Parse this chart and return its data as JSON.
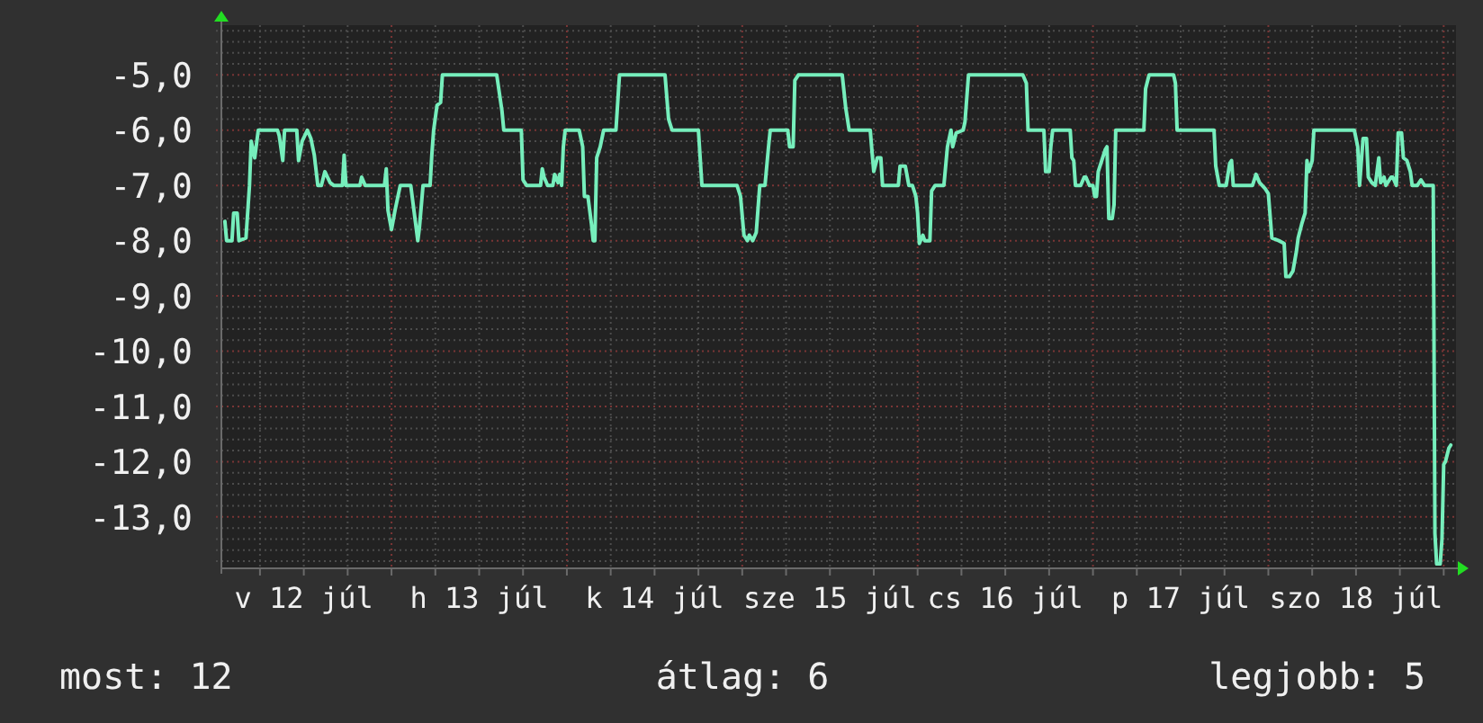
{
  "chart_data": {
    "type": "line",
    "xlim": [
      "--07-12T00:43",
      "--07-19T01:41"
    ],
    "ylim": [
      -13.93,
      -4.1
    ],
    "xticks": [
      {
        "value": "--07-12T06:00",
        "label": null
      },
      {
        "value": "--07-12T12:00",
        "label": "v 12 júl"
      },
      {
        "value": "--07-12T18:00",
        "label": null
      },
      {
        "value": "--07-13T00:00",
        "label": null
      },
      {
        "value": "--07-13T06:00",
        "label": null
      },
      {
        "value": "--07-13T12:00",
        "label": "h 13 júl"
      },
      {
        "value": "--07-13T18:00",
        "label": null
      },
      {
        "value": "--07-14T00:00",
        "label": null
      },
      {
        "value": "--07-14T06:00",
        "label": null
      },
      {
        "value": "--07-14T12:00",
        "label": "k 14 júl"
      },
      {
        "value": "--07-14T18:00",
        "label": null
      },
      {
        "value": "--07-15T00:00",
        "label": null
      },
      {
        "value": "--07-15T06:00",
        "label": null
      },
      {
        "value": "--07-15T12:00",
        "label": "sze 15 júl"
      },
      {
        "value": "--07-15T18:00",
        "label": null
      },
      {
        "value": "--07-16T00:00",
        "label": null
      },
      {
        "value": "--07-16T06:00",
        "label": null
      },
      {
        "value": "--07-16T12:00",
        "label": "cs 16 júl"
      },
      {
        "value": "--07-16T18:00",
        "label": null
      },
      {
        "value": "--07-17T00:00",
        "label": null
      },
      {
        "value": "--07-17T06:00",
        "label": null
      },
      {
        "value": "--07-17T12:00",
        "label": "p 17 júl"
      },
      {
        "value": "--07-17T18:00",
        "label": null
      },
      {
        "value": "--07-18T00:00",
        "label": null
      },
      {
        "value": "--07-18T06:00",
        "label": null
      },
      {
        "value": "--07-18T12:00",
        "label": "szo 18 júl"
      },
      {
        "value": "--07-18T18:00",
        "label": null
      },
      {
        "value": "--07-19T00:00",
        "label": null
      }
    ],
    "yticks": [
      {
        "value": -13.8,
        "label": null
      },
      {
        "value": -13.6,
        "label": null
      },
      {
        "value": -13.4,
        "label": null
      },
      {
        "value": -13.2,
        "label": null
      },
      {
        "value": -13,
        "label": "-13,0"
      },
      {
        "value": -12.8,
        "label": null
      },
      {
        "value": -12.6,
        "label": null
      },
      {
        "value": -12.4,
        "label": null
      },
      {
        "value": -12.2,
        "label": null
      },
      {
        "value": -12,
        "label": "-12,0"
      },
      {
        "value": -11.8,
        "label": null
      },
      {
        "value": -11.6,
        "label": null
      },
      {
        "value": -11.4,
        "label": null
      },
      {
        "value": -11.2,
        "label": null
      },
      {
        "value": -11,
        "label": "-11,0"
      },
      {
        "value": -10.8,
        "label": null
      },
      {
        "value": -10.6,
        "label": null
      },
      {
        "value": -10.4,
        "label": null
      },
      {
        "value": -10.2,
        "label": null
      },
      {
        "value": -10,
        "label": "-10,0"
      },
      {
        "value": -9.8,
        "label": null
      },
      {
        "value": -9.6,
        "label": null
      },
      {
        "value": -9.4,
        "label": null
      },
      {
        "value": -9.2,
        "label": null
      },
      {
        "value": -9,
        "label": "-9,0"
      },
      {
        "value": -8.8,
        "label": null
      },
      {
        "value": -8.6,
        "label": null
      },
      {
        "value": -8.4,
        "label": null
      },
      {
        "value": -8.2,
        "label": null
      },
      {
        "value": -8,
        "label": "-8,0"
      },
      {
        "value": -7.8,
        "label": null
      },
      {
        "value": -7.6,
        "label": null
      },
      {
        "value": -7.4,
        "label": null
      },
      {
        "value": -7.2,
        "label": null
      },
      {
        "value": -7,
        "label": "-7,0"
      },
      {
        "value": -6.8,
        "label": null
      },
      {
        "value": -6.6,
        "label": null
      },
      {
        "value": -6.4,
        "label": null
      },
      {
        "value": -6.2,
        "label": null
      },
      {
        "value": -6,
        "label": "-6,0"
      },
      {
        "value": -5.8,
        "label": null
      },
      {
        "value": -5.6,
        "label": null
      },
      {
        "value": -5.4,
        "label": null
      },
      {
        "value": -5.2,
        "label": null
      },
      {
        "value": -5,
        "label": "-5,0"
      },
      {
        "value": -4.8,
        "label": null
      },
      {
        "value": -4.6,
        "label": null
      },
      {
        "value": -4.4,
        "label": null
      },
      {
        "value": -4.2,
        "label": null
      }
    ],
    "grid": true,
    "x": [
      "--07-12T01:12",
      "--07-12T01:26",
      "--07-12T02:10",
      "--07-12T02:24",
      "--07-12T02:53",
      "--07-12T03:07",
      "--07-12T04:05",
      "--07-12T04:34",
      "--07-12T04:48",
      "--07-12T05:17",
      "--07-12T05:46",
      "--07-12T08:24",
      "--07-12T08:38",
      "--07-12T09:07",
      "--07-12T09:22",
      "--07-12T11:02",
      "--07-12T11:17",
      "--07-12T11:46",
      "--07-12T12:29",
      "--07-12T12:58",
      "--07-12T13:26",
      "--07-12T13:55",
      "--07-12T14:24",
      "--07-12T14:53",
      "--07-12T15:36",
      "--07-12T16:05",
      "--07-12T17:17",
      "--07-12T17:31",
      "--07-12T17:46",
      "--07-12T19:41",
      "--07-12T19:55",
      "--07-12T20:24",
      "--07-12T23:02",
      "--07-12T23:17",
      "--07-12T23:31",
      "--07-13T00:00",
      "--07-13T00:29",
      "--07-13T01:12",
      "--07-13T02:38",
      "--07-13T03:07",
      "--07-13T03:36",
      "--07-13T03:50",
      "--07-13T04:19",
      "--07-13T05:17",
      "--07-13T05:31",
      "--07-13T05:46",
      "--07-13T06:14",
      "--07-13T06:43",
      "--07-13T06:58",
      "--07-13T14:24",
      "--07-13T15:07",
      "--07-13T15:22",
      "--07-13T17:46",
      "--07-13T18:00",
      "--07-13T18:29",
      "--07-13T20:24",
      "--07-13T20:38",
      "--07-13T20:53",
      "--07-13T21:22",
      "--07-13T22:05",
      "--07-13T22:19",
      "--07-13T22:48",
      "--07-13T23:02",
      "--07-13T23:17",
      "--07-13T23:31",
      "--07-13T23:46",
      "--07-14T01:41",
      "--07-14T02:10",
      "--07-14T02:24",
      "--07-14T02:53",
      "--07-14T03:22",
      "--07-14T03:36",
      "--07-14T03:50",
      "--07-14T04:05",
      "--07-14T04:34",
      "--07-14T05:02",
      "--07-14T06:43",
      "--07-14T07:12",
      "--07-14T13:26",
      "--07-14T13:55",
      "--07-14T14:24",
      "--07-14T18:00",
      "--07-14T18:29",
      "--07-14T23:17",
      "--07-14T23:46",
      "--07-15T00:14",
      "--07-15T00:43",
      "--07-15T00:58",
      "--07-15T01:26",
      "--07-15T01:55",
      "--07-15T02:24",
      "--07-15T03:07",
      "--07-15T03:36",
      "--07-15T03:50",
      "--07-15T06:14",
      "--07-15T06:29",
      "--07-15T06:58",
      "--07-15T07:12",
      "--07-15T07:41",
      "--07-15T13:41",
      "--07-15T14:10",
      "--07-15T14:38",
      "--07-15T17:31",
      "--07-15T17:46",
      "--07-15T18:00",
      "--07-15T18:29",
      "--07-15T18:58",
      "--07-15T19:12",
      "--07-15T21:22",
      "--07-15T21:36",
      "--07-15T22:19",
      "--07-15T22:48",
      "--07-15T23:17",
      "--07-15T23:46",
      "--07-16T00:00",
      "--07-16T00:14",
      "--07-16T00:43",
      "--07-16T00:58",
      "--07-16T01:41",
      "--07-16T01:55",
      "--07-16T02:24",
      "--07-16T03:36",
      "--07-16T04:05",
      "--07-16T04:34",
      "--07-16T04:48",
      "--07-16T05:17",
      "--07-16T06:14",
      "--07-16T06:29",
      "--07-16T06:58",
      "--07-16T14:24",
      "--07-16T14:53",
      "--07-16T15:07",
      "--07-16T17:17",
      "--07-16T17:31",
      "--07-16T18:00",
      "--07-16T18:14",
      "--07-16T18:29",
      "--07-16T20:53",
      "--07-16T21:07",
      "--07-16T21:22",
      "--07-16T21:36",
      "--07-16T22:19",
      "--07-16T22:48",
      "--07-16T23:02",
      "--07-16T23:31",
      "--07-17T00:00",
      "--07-17T00:14",
      "--07-17T00:29",
      "--07-17T00:43",
      "--07-17T01:12",
      "--07-17T01:41",
      "--07-17T01:55",
      "--07-17T02:10",
      "--07-17T02:38",
      "--07-17T02:53",
      "--07-17T03:07",
      "--07-17T06:58",
      "--07-17T07:12",
      "--07-17T07:41",
      "--07-17T11:02",
      "--07-17T11:17",
      "--07-17T11:31",
      "--07-17T16:34",
      "--07-17T16:48",
      "--07-17T17:17",
      "--07-17T18:14",
      "--07-17T18:43",
      "--07-17T18:58",
      "--07-17T19:12",
      "--07-17T21:50",
      "--07-17T22:19",
      "--07-17T22:48",
      "--07-17T23:31",
      "--07-18T00:00",
      "--07-18T00:29",
      "--07-18T01:26",
      "--07-18T02:10",
      "--07-18T02:24",
      "--07-18T02:53",
      "--07-18T03:22",
      "--07-18T03:50",
      "--07-18T04:05",
      "--07-18T04:34",
      "--07-18T05:02",
      "--07-18T05:17",
      "--07-18T05:31",
      "--07-18T06:00",
      "--07-18T06:14",
      "--07-18T11:46",
      "--07-18T12:14",
      "--07-18T12:29",
      "--07-18T12:58",
      "--07-18T13:26",
      "--07-18T13:41",
      "--07-18T14:10",
      "--07-18T14:38",
      "--07-18T15:07",
      "--07-18T15:22",
      "--07-18T15:50",
      "--07-18T16:05",
      "--07-18T16:48",
      "--07-18T17:02",
      "--07-18T17:31",
      "--07-18T17:46",
      "--07-18T18:14",
      "--07-18T18:29",
      "--07-18T18:58",
      "--07-18T19:26",
      "--07-18T19:41",
      "--07-18T20:24",
      "--07-18T20:53",
      "--07-18T21:22",
      "--07-18T22:34",
      "--07-18T22:48",
      "--07-18T23:02",
      "--07-18T23:31",
      "--07-18T23:46",
      "--07-19T00:00",
      "--07-19T00:14",
      "--07-19T00:43",
      "--07-19T00:58"
    ],
    "series": [
      {
        "color": "#76eebc",
        "values": [
          -7.65,
          -8,
          -8,
          -7.5,
          -7.5,
          -8,
          -7.95,
          -7,
          -6.2,
          -6.5,
          -6,
          -6,
          -6.1,
          -6.55,
          -6,
          -6,
          -6.55,
          -6.2,
          -6,
          -6.15,
          -6.45,
          -7,
          -7,
          -6.75,
          -6.95,
          -7,
          -7,
          -6.45,
          -7,
          -7,
          -6.85,
          -7,
          -7,
          -6.7,
          -7.45,
          -7.8,
          -7.45,
          -7,
          -7,
          -7.5,
          -8,
          -7.75,
          -7,
          -7,
          -6.45,
          -6,
          -5.55,
          -5.5,
          -5,
          -5,
          -5.65,
          -6,
          -6,
          -6.9,
          -7,
          -7,
          -6.7,
          -6.85,
          -7,
          -7,
          -6.8,
          -6.95,
          -6.8,
          -7,
          -6.3,
          -6,
          -6,
          -6.3,
          -7.2,
          -7.2,
          -7.7,
          -8,
          -8,
          -6.5,
          -6.3,
          -6,
          -6,
          -5,
          -5,
          -5.8,
          -6,
          -6,
          -7,
          -7,
          -7.2,
          -7.9,
          -8,
          -7.9,
          -8,
          -7.85,
          -7,
          -7,
          -6.3,
          -6,
          -6,
          -6.3,
          -6.3,
          -5.1,
          -5,
          -5,
          -5.6,
          -6,
          -6,
          -6.4,
          -6.75,
          -6.5,
          -6.5,
          -7,
          -7,
          -6.65,
          -6.65,
          -7,
          -7,
          -7.2,
          -7.5,
          -8.05,
          -7.9,
          -8,
          -8,
          -7.1,
          -7,
          -7,
          -6.3,
          -6,
          -6.3,
          -6.05,
          -6,
          -5.85,
          -5,
          -5,
          -5.15,
          -6,
          -6,
          -6.75,
          -6.75,
          -6.3,
          -6,
          -6,
          -6.5,
          -6.55,
          -7,
          -7,
          -6.85,
          -6.85,
          -7,
          -7,
          -7.2,
          -7.2,
          -6.75,
          -6.55,
          -6.35,
          -6.3,
          -7.6,
          -7.6,
          -7.35,
          -6,
          -6,
          -5.25,
          -5,
          -5,
          -5.15,
          -6,
          -6,
          -6.65,
          -7,
          -7,
          -6.6,
          -6.55,
          -7,
          -7,
          -6.8,
          -6.95,
          -7.05,
          -7.15,
          -7.95,
          -8,
          -8.05,
          -8.65,
          -8.65,
          -8.55,
          -8.2,
          -7.95,
          -7.7,
          -7.5,
          -6.55,
          -6.75,
          -6.55,
          -6,
          -6,
          -6.3,
          -7,
          -6.15,
          -6.15,
          -6.85,
          -6.95,
          -7,
          -6.5,
          -6.95,
          -6.85,
          -7,
          -6.85,
          -6.85,
          -7,
          -6.05,
          -6.05,
          -6.5,
          -6.55,
          -6.75,
          -7,
          -7,
          -6.9,
          -7,
          -7,
          -13.3,
          -13.85,
          -13.85,
          -13.4,
          -12.05,
          -12,
          -11.75,
          -11.7
        ]
      }
    ],
    "annotations": [
      "most: 12",
      "átlag: 6",
      "legjobb: 5"
    ]
  }
}
